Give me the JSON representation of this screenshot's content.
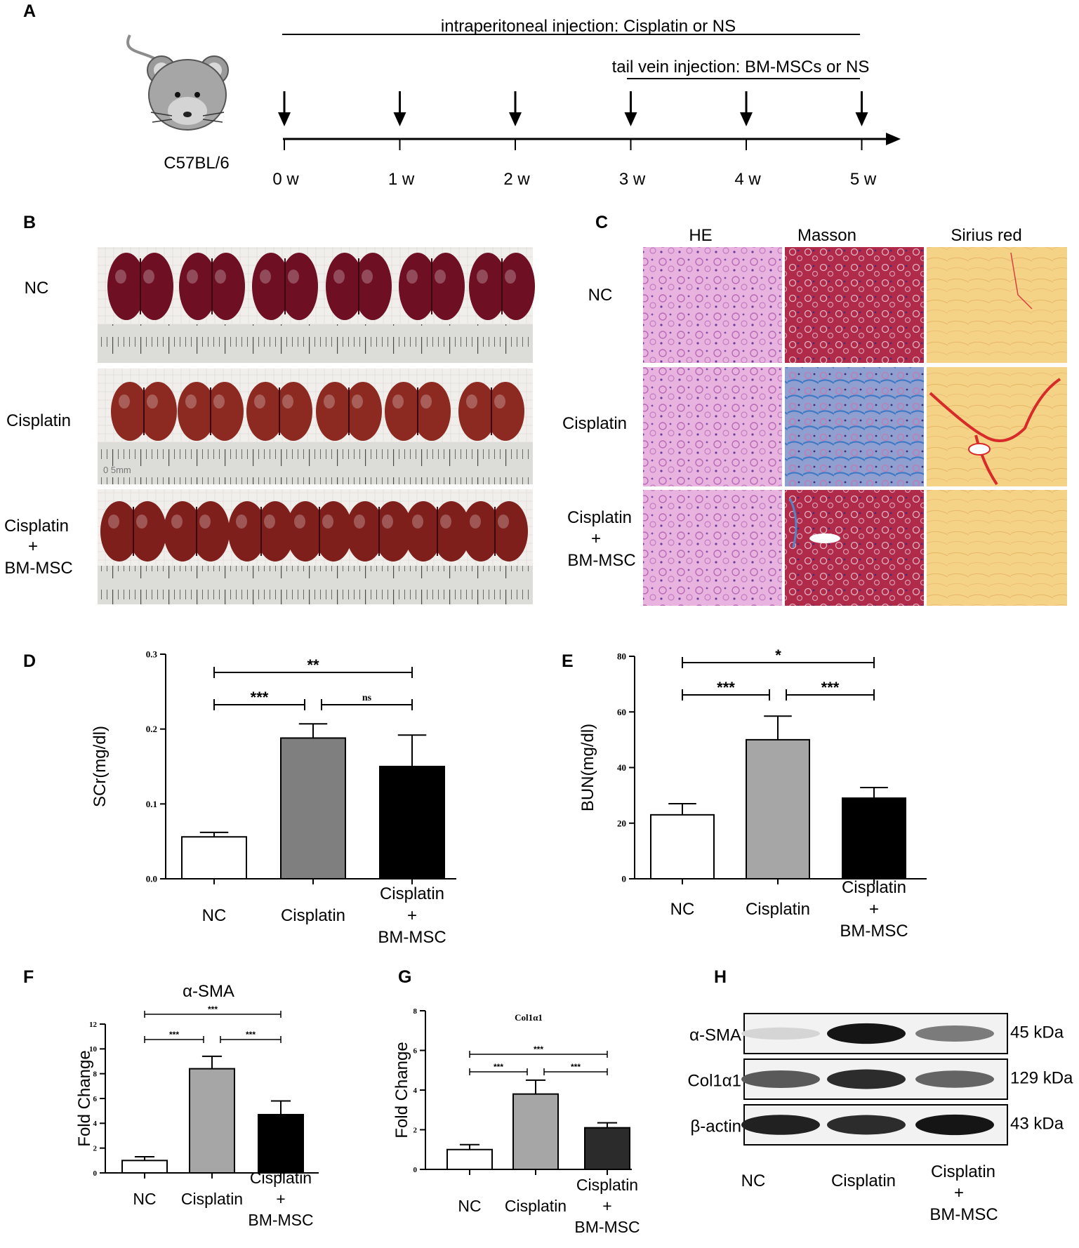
{
  "panels": {
    "A": {
      "letter": "A",
      "strain": "C57BL/6",
      "ip_label": "intraperitoneal injection: Cisplatin or NS",
      "tv_label": "tail vein injection: BM-MSCs or NS",
      "weeks": [
        "0 w",
        "1 w",
        "2 w",
        "3 w",
        "4 w",
        "5 w"
      ],
      "icons": {
        "mouse": "mouse-icon",
        "arrow": "down-arrow-icon"
      }
    },
    "B": {
      "letter": "B",
      "rows": [
        "NC",
        "Cisplatin",
        "Cisplatin",
        "+",
        "BM-MSC"
      ],
      "ruler_text": "0 5mm",
      "kidneys_per_row": [
        6,
        6,
        7
      ],
      "colors": {
        "NC": "#6e0f24",
        "Cisplatin": "#8c2a22",
        "Cisplatin + BM-MSC": "#7f1f1c",
        "ruler": "#d9d9d6"
      }
    },
    "C": {
      "letter": "C",
      "stains": [
        "HE",
        "Masson",
        "Sirius red"
      ],
      "rows": [
        "NC",
        "Cisplatin",
        "Cisplatin",
        "+",
        "BM-MSC"
      ],
      "colors": {
        "HE": "#e6a8dc",
        "Masson_NC": "#a8233f",
        "Masson_Cisplatin": "#5a82c0",
        "Masson_BM": "#b32a4f",
        "Sirius": "#f3cf7b",
        "Sirius_red": "#d92a2a"
      }
    },
    "H": {
      "letter": "H",
      "bands": [
        {
          "protein": "α-SMA",
          "size": "45 kDa",
          "intensity": [
            0.1,
            0.95,
            0.5
          ]
        },
        {
          "protein": "Col1α1",
          "size": "129 kDa",
          "intensity": [
            0.65,
            0.85,
            0.6
          ]
        },
        {
          "protein": "β-actin",
          "size": "43 kDa",
          "intensity": [
            0.9,
            0.85,
            0.95
          ]
        }
      ],
      "lanes": [
        "NC",
        "Cisplatin",
        "Cisplatin",
        "+",
        "BM-MSC"
      ]
    }
  },
  "chart_data": [
    {
      "panel": "D",
      "type": "bar",
      "title": "",
      "ylabel": "SCr(mg/dl)",
      "categories": [
        "NC",
        "Cisplatin",
        "Cisplatin + BM-MSC"
      ],
      "category_lines": [
        [
          "NC"
        ],
        [
          "Cisplatin"
        ],
        [
          "Cisplatin",
          "+",
          "BM-MSC"
        ]
      ],
      "values": [
        0.056,
        0.188,
        0.15
      ],
      "errors": [
        0.006,
        0.019,
        0.042
      ],
      "ylim": [
        0,
        0.3
      ],
      "yticks": [
        "0.0",
        "0.1",
        "0.2",
        "0.3"
      ],
      "bar_colors": [
        "#ffffff",
        "#7f7f7f",
        "#000000"
      ],
      "sig": [
        {
          "from": 0,
          "to": 2,
          "label": "**"
        },
        {
          "from": 0,
          "to": 1,
          "label": "***"
        },
        {
          "from": 1,
          "to": 2,
          "label": "ns"
        }
      ]
    },
    {
      "panel": "E",
      "type": "bar",
      "title": "",
      "ylabel": "BUN(mg/dl)",
      "categories": [
        "NC",
        "Cisplatin",
        "Cisplatin + BM-MSC"
      ],
      "category_lines": [
        [
          "NC"
        ],
        [
          "Cisplatin"
        ],
        [
          "Cisplatin",
          "+",
          "BM-MSC"
        ]
      ],
      "values": [
        23,
        50,
        29
      ],
      "errors": [
        4,
        8.5,
        3.8
      ],
      "ylim": [
        0,
        80
      ],
      "yticks": [
        "0",
        "20",
        "40",
        "60",
        "80"
      ],
      "bar_colors": [
        "#ffffff",
        "#a6a6a6",
        "#000000"
      ],
      "sig": [
        {
          "from": 0,
          "to": 2,
          "label": "*"
        },
        {
          "from": 0,
          "to": 1,
          "label": "***"
        },
        {
          "from": 1,
          "to": 2,
          "label": "***"
        }
      ]
    },
    {
      "panel": "F",
      "type": "bar",
      "title": "α-SMA",
      "ylabel": "Fold Change",
      "categories": [
        "NC",
        "Cisplatin",
        "Cisplatin + BM-MSC"
      ],
      "category_lines": [
        [
          "NC"
        ],
        [
          "Cisplatin"
        ],
        [
          "Cisplatin",
          "+",
          "BM-MSC"
        ]
      ],
      "values": [
        1.0,
        8.4,
        4.7
      ],
      "errors": [
        0.3,
        1.0,
        1.1
      ],
      "ylim": [
        0,
        12
      ],
      "yticks": [
        "0",
        "2",
        "4",
        "6",
        "8",
        "10",
        "12"
      ],
      "bar_colors": [
        "#ffffff",
        "#a6a6a6",
        "#000000"
      ],
      "sig": [
        {
          "from": 0,
          "to": 2,
          "label": "***"
        },
        {
          "from": 0,
          "to": 1,
          "label": "***"
        },
        {
          "from": 1,
          "to": 2,
          "label": "***"
        }
      ]
    },
    {
      "panel": "G",
      "type": "bar",
      "title": "Col1α1",
      "ylabel": "Fold Change",
      "categories": [
        "NC",
        "Cisplatin",
        "Cisplatin + BM-MSC"
      ],
      "category_lines": [
        [
          "NC"
        ],
        [
          "Cisplatin"
        ],
        [
          "Cisplatin",
          "+",
          "BM-MSC"
        ]
      ],
      "values": [
        1.0,
        3.8,
        2.1
      ],
      "errors": [
        0.25,
        0.7,
        0.25
      ],
      "ylim": [
        0,
        8
      ],
      "yticks": [
        "0",
        "2",
        "4",
        "6",
        "8"
      ],
      "bar_colors": [
        "#ffffff",
        "#a6a6a6",
        "#2b2b2b"
      ],
      "sig": [
        {
          "from": 0,
          "to": 2,
          "label": "***"
        },
        {
          "from": 0,
          "to": 1,
          "label": "***"
        },
        {
          "from": 1,
          "to": 2,
          "label": "***"
        }
      ]
    }
  ]
}
